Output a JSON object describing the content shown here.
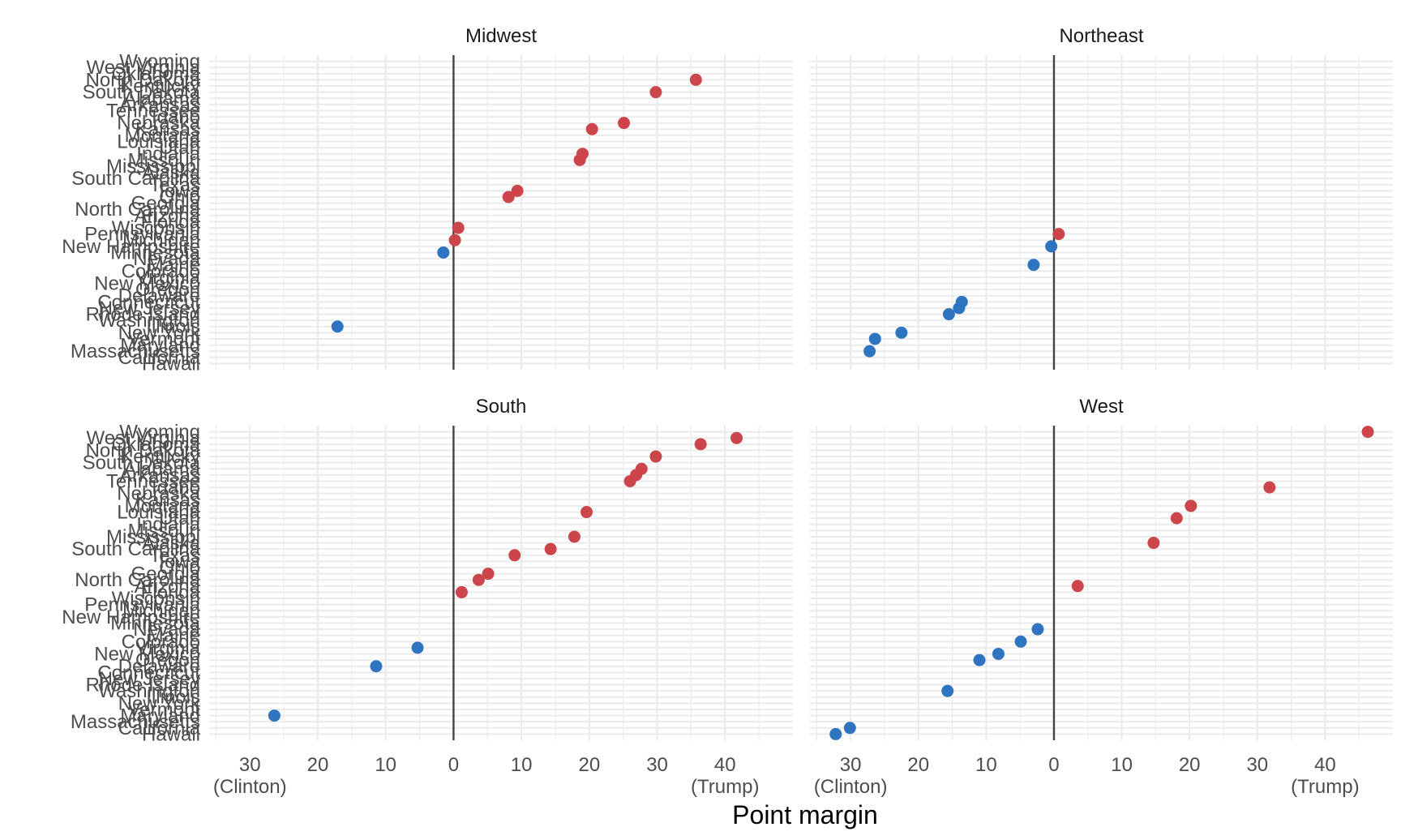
{
  "chart_data": {
    "type": "scatter",
    "title": "",
    "xlabel": "Point margin",
    "ylabel": "",
    "xlim": [
      -36,
      50
    ],
    "x_ticks": [
      {
        "value": -30,
        "label": "30",
        "sub": "(Clinton)"
      },
      {
        "value": -20,
        "label": "20",
        "sub": ""
      },
      {
        "value": -10,
        "label": "10",
        "sub": ""
      },
      {
        "value": 0,
        "label": "0",
        "sub": ""
      },
      {
        "value": 10,
        "label": "10",
        "sub": ""
      },
      {
        "value": 20,
        "label": "20",
        "sub": ""
      },
      {
        "value": 30,
        "label": "30",
        "sub": ""
      },
      {
        "value": 40,
        "label": "40",
        "sub": "(Trump)"
      }
    ],
    "grid": true,
    "legend": "none",
    "colors": {
      "trump": "#CB454A",
      "clinton": "#2E74C0",
      "zero_line": "#444444",
      "grid": "#ebebeb"
    },
    "states_order": [
      "Wyoming",
      "West Virginia",
      "Oklahoma",
      "North Dakota",
      "Kentucky",
      "South Dakota",
      "Alabama",
      "Arkansas",
      "Tennessee",
      "Idaho",
      "Nebraska",
      "Kansas",
      "Montana",
      "Louisiana",
      "Utah",
      "Indiana",
      "Missouri",
      "Mississippi",
      "Alaska",
      "South Carolina",
      "Texas",
      "Iowa",
      "Ohio",
      "Georgia",
      "North Carolina",
      "Arizona",
      "Florida",
      "Wisconsin",
      "Pennsylvania",
      "Michigan",
      "New Hampshire",
      "Minnesota",
      "Nevada",
      "Maine",
      "Colorado",
      "Virginia",
      "New Mexico",
      "Oregon",
      "Delaware",
      "Connecticut",
      "New Jersey",
      "Rhode Island",
      "Washington",
      "Illinois",
      "New York",
      "Vermont",
      "Maryland",
      "Massachusetts",
      "California",
      "Hawaii"
    ],
    "panels": [
      {
        "region": "Midwest",
        "points": [
          {
            "state": "North Dakota",
            "x": 35.7
          },
          {
            "state": "South Dakota",
            "x": 29.8
          },
          {
            "state": "Nebraska",
            "x": 25.1
          },
          {
            "state": "Kansas",
            "x": 20.4
          },
          {
            "state": "Indiana",
            "x": 19.0
          },
          {
            "state": "Missouri",
            "x": 18.6
          },
          {
            "state": "Iowa",
            "x": 9.4
          },
          {
            "state": "Ohio",
            "x": 8.1
          },
          {
            "state": "Wisconsin",
            "x": 0.7
          },
          {
            "state": "Michigan",
            "x": 0.2
          },
          {
            "state": "Minnesota",
            "x": -1.5
          },
          {
            "state": "Illinois",
            "x": -17.1
          }
        ]
      },
      {
        "region": "Northeast",
        "points": [
          {
            "state": "Pennsylvania",
            "x": 0.7
          },
          {
            "state": "New Hampshire",
            "x": -0.4
          },
          {
            "state": "Maine",
            "x": -3.0
          },
          {
            "state": "Connecticut",
            "x": -13.6
          },
          {
            "state": "New Jersey",
            "x": -14.0
          },
          {
            "state": "Rhode Island",
            "x": -15.5
          },
          {
            "state": "New York",
            "x": -22.5
          },
          {
            "state": "Vermont",
            "x": -26.4
          },
          {
            "state": "Massachusetts",
            "x": -27.2
          }
        ]
      },
      {
        "region": "South",
        "points": [
          {
            "state": "West Virginia",
            "x": 41.7
          },
          {
            "state": "Oklahoma",
            "x": 36.4
          },
          {
            "state": "Kentucky",
            "x": 29.8
          },
          {
            "state": "Alabama",
            "x": 27.7
          },
          {
            "state": "Arkansas",
            "x": 26.9
          },
          {
            "state": "Tennessee",
            "x": 26.0
          },
          {
            "state": "Louisiana",
            "x": 19.6
          },
          {
            "state": "Mississippi",
            "x": 17.8
          },
          {
            "state": "South Carolina",
            "x": 14.3
          },
          {
            "state": "Texas",
            "x": 9.0
          },
          {
            "state": "Georgia",
            "x": 5.1
          },
          {
            "state": "North Carolina",
            "x": 3.7
          },
          {
            "state": "Florida",
            "x": 1.2
          },
          {
            "state": "Virginia",
            "x": -5.3
          },
          {
            "state": "Delaware",
            "x": -11.4
          },
          {
            "state": "Maryland",
            "x": -26.4
          }
        ]
      },
      {
        "region": "West",
        "points": [
          {
            "state": "Wyoming",
            "x": 46.3
          },
          {
            "state": "Idaho",
            "x": 31.8
          },
          {
            "state": "Montana",
            "x": 20.2
          },
          {
            "state": "Utah",
            "x": 18.1
          },
          {
            "state": "Alaska",
            "x": 14.7
          },
          {
            "state": "Arizona",
            "x": 3.5
          },
          {
            "state": "Nevada",
            "x": -2.4
          },
          {
            "state": "Colorado",
            "x": -4.9
          },
          {
            "state": "New Mexico",
            "x": -8.2
          },
          {
            "state": "Oregon",
            "x": -11.0
          },
          {
            "state": "Washington",
            "x": -15.7
          },
          {
            "state": "California",
            "x": -30.1
          },
          {
            "state": "Hawaii",
            "x": -32.2
          }
        ]
      }
    ]
  }
}
